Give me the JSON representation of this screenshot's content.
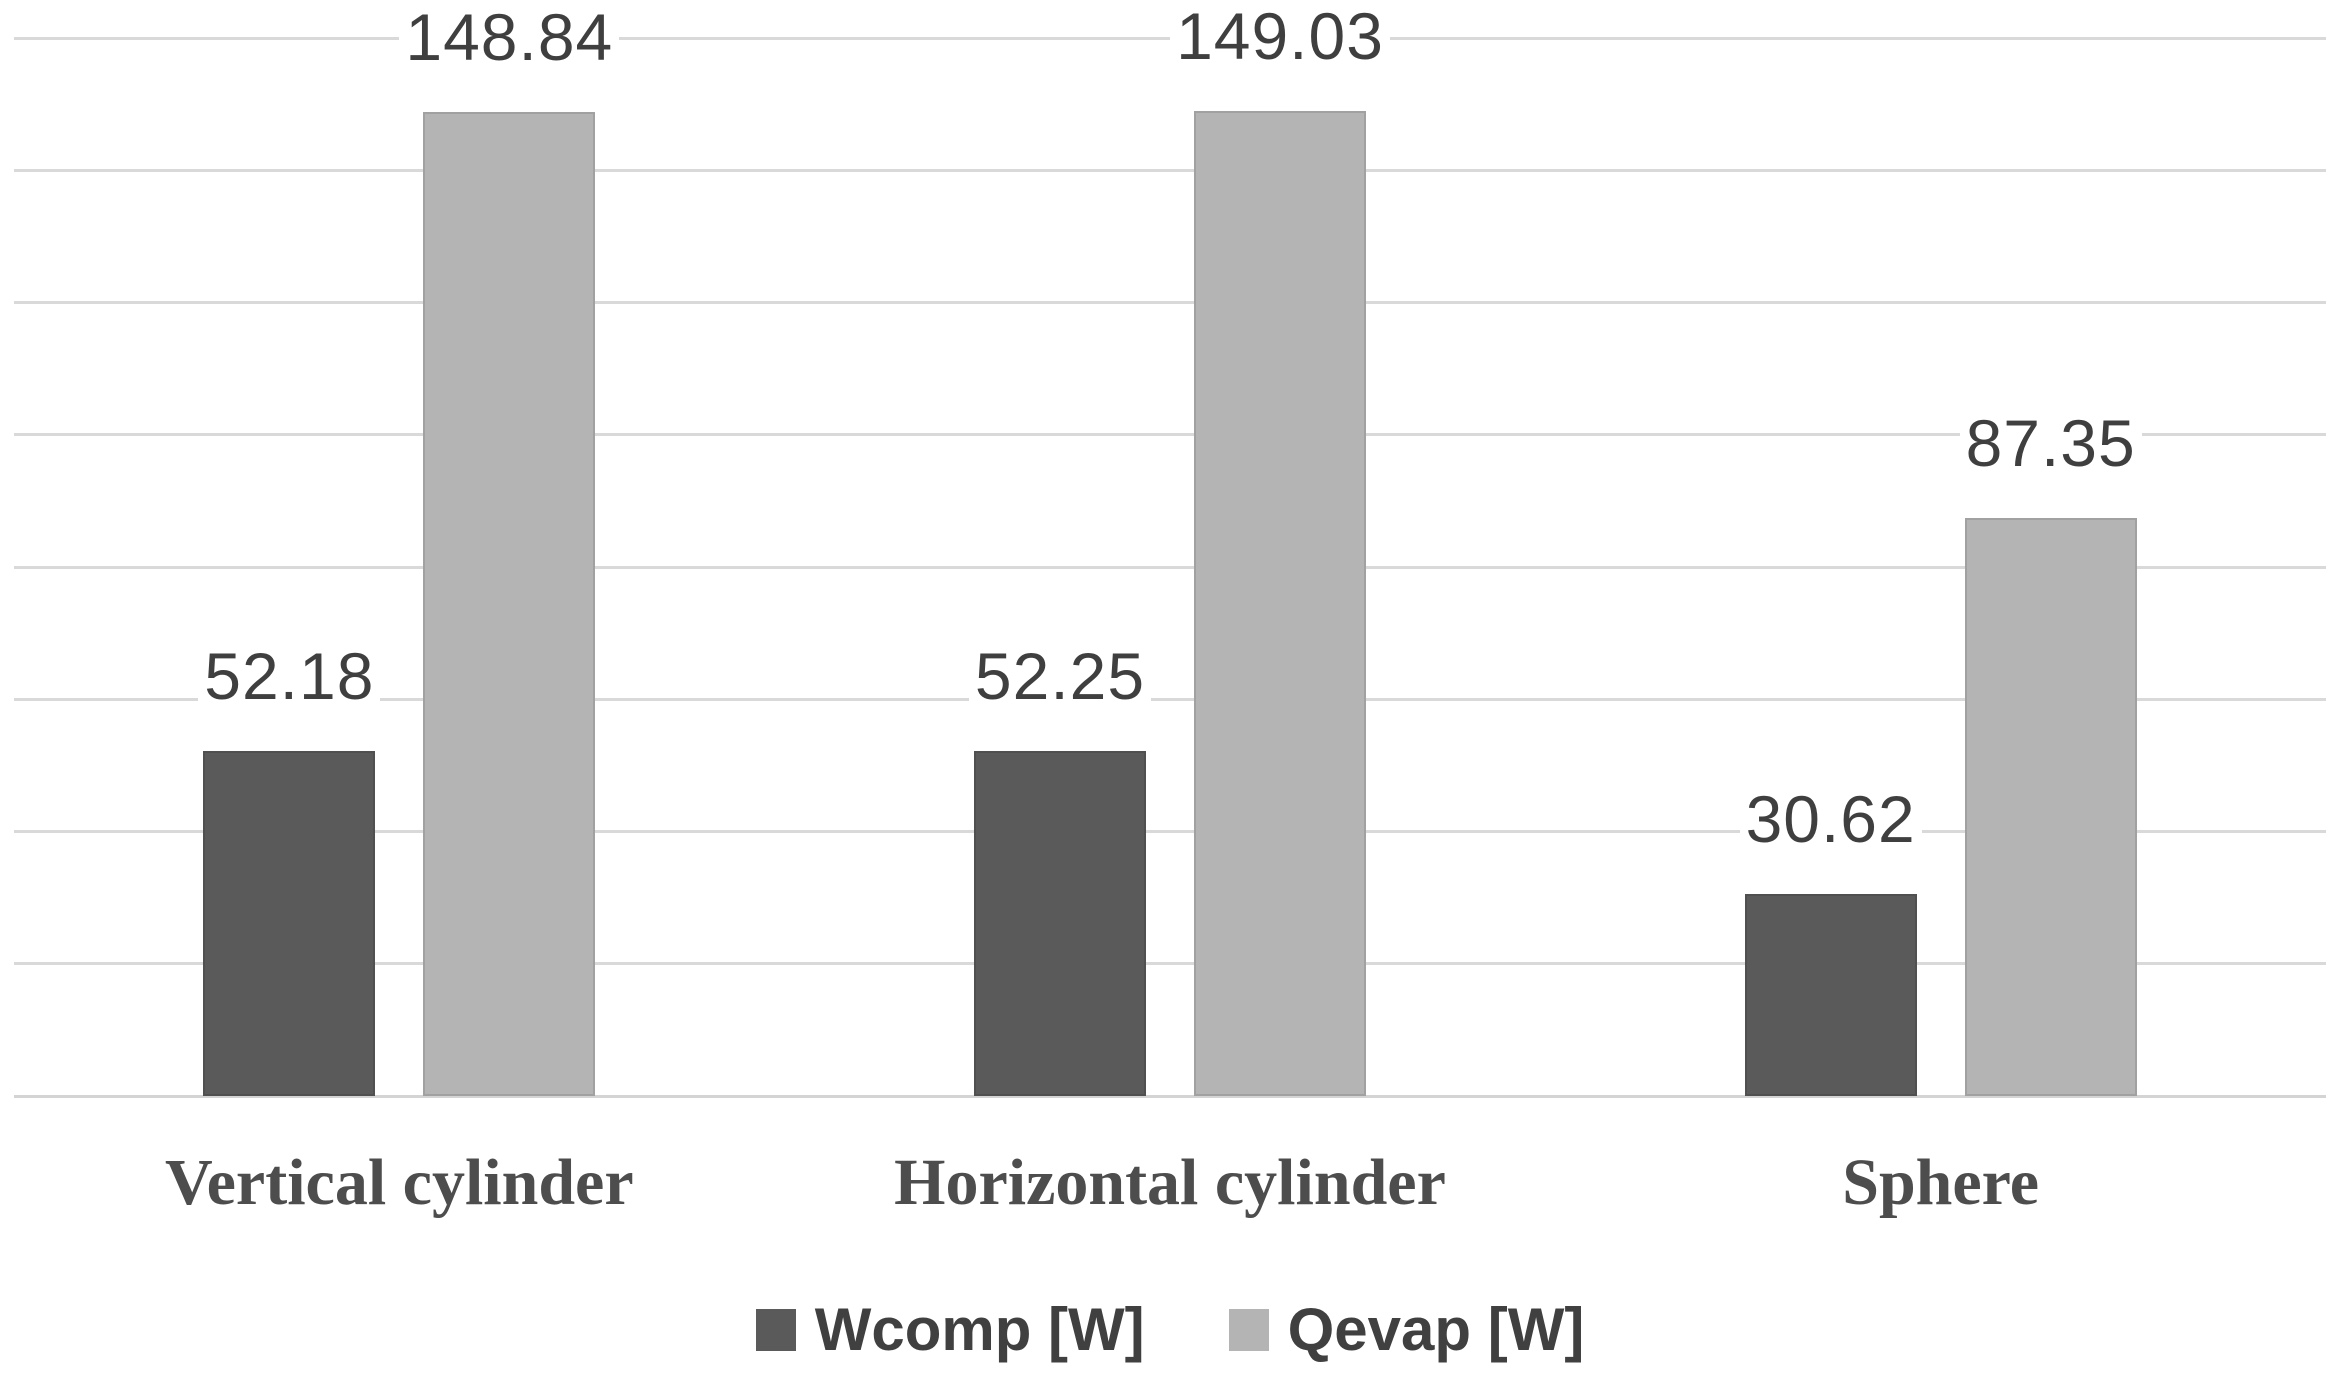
{
  "chart_data": {
    "type": "bar",
    "title": "",
    "xlabel": "",
    "ylabel": "",
    "categories": [
      "Vertical cylinder",
      "Horizontal cylinder",
      "Sphere"
    ],
    "series": [
      {
        "name": "Wcomp [W]",
        "color": "#5a5a5a",
        "values": [
          52.18,
          52.25,
          30.62
        ],
        "data_labels": [
          "52.18",
          "52.25",
          "30.62"
        ]
      },
      {
        "name": "Qevap [W]",
        "color": "#b4b4b4",
        "values": [
          148.84,
          149.03,
          87.35
        ],
        "data_labels": [
          "148.84",
          "149.03",
          "87.35"
        ]
      }
    ],
    "ylim": [
      0,
      160
    ],
    "ytick_step": 20,
    "y_tick_labels_visible": false,
    "grid": "horizontal",
    "gridline_color": "#d9d9d9",
    "data_label_color": "#3f3f3f",
    "category_label_color": "#4d4d4d",
    "legend": {
      "position": "bottom",
      "entries": [
        {
          "label": "Wcomp [W]",
          "color": "#5a5a5a"
        },
        {
          "label": "Qevap [W]",
          "color": "#b4b4b4"
        }
      ],
      "text_color": "#404040"
    }
  }
}
